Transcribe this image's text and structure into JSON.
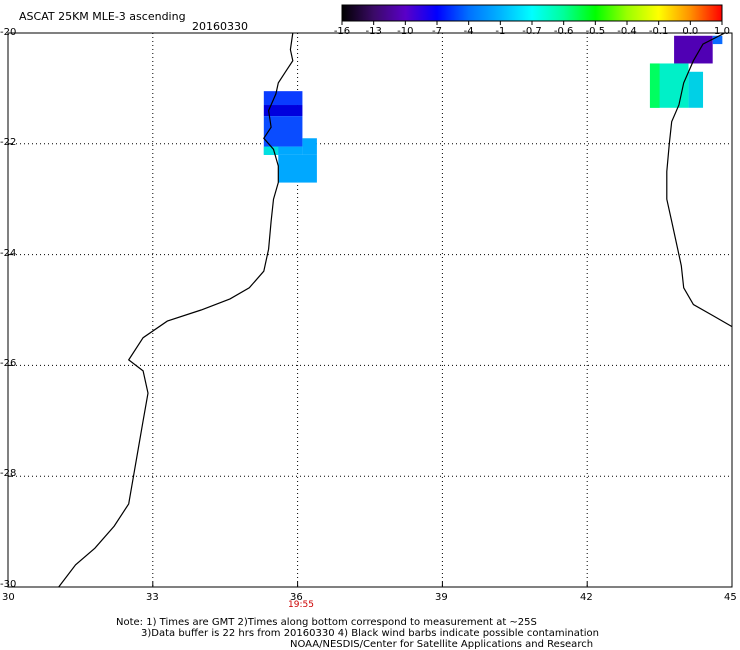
{
  "title": "ASCAT 25KM MLE-3 ascending",
  "date": "20160330",
  "colorbar": {
    "labels": [
      "-16",
      "-13",
      "-10",
      "-7",
      "-4",
      "-1",
      "-0.7",
      "-0.6",
      "-0.5",
      "-0.4",
      "-0.1",
      "0.0",
      "1.0"
    ],
    "colors": [
      "#000000",
      "#3a0a66",
      "#5a00c8",
      "#0000ff",
      "#0070ff",
      "#00b4ff",
      "#00ffff",
      "#00ff9a",
      "#00ff00",
      "#9aff00",
      "#ffff00",
      "#ff9000",
      "#ff0000"
    ]
  },
  "axes": {
    "x_ticks": [
      "30",
      "33",
      "36",
      "39",
      "42",
      "45"
    ],
    "y_ticks": [
      "-20",
      "-22",
      "-24",
      "-26",
      "-28",
      "-30"
    ],
    "time_label": "19:55",
    "time_color": "#cc0000"
  },
  "cells": [
    {
      "lon0": 35.3,
      "lon1": 36.1,
      "lat0": -21.05,
      "lat1": -21.3,
      "color": "#0a3cff"
    },
    {
      "lon0": 35.3,
      "lon1": 36.1,
      "lat0": -21.3,
      "lat1": -21.5,
      "color": "#0000dd"
    },
    {
      "lon0": 35.3,
      "lon1": 36.1,
      "lat0": -21.5,
      "lat1": -22.05,
      "color": "#0a4cff"
    },
    {
      "lon0": 35.3,
      "lon1": 36.1,
      "lat0": -22.05,
      "lat1": -22.2,
      "color": "#00a8ff"
    },
    {
      "lon0": 35.6,
      "lon1": 36.4,
      "lat0": -22.2,
      "lat1": -22.7,
      "color": "#00a8ff"
    },
    {
      "lon0": 36.1,
      "lon1": 36.4,
      "lat0": -21.9,
      "lat1": -22.2,
      "color": "#00a8ff"
    },
    {
      "lon0": 35.3,
      "lon1": 35.6,
      "lat0": -22.05,
      "lat1": -22.2,
      "color": "#00e0e0"
    },
    {
      "lon0": 43.8,
      "lon1": 44.6,
      "lat0": -20.05,
      "lat1": -20.55,
      "color": "#5000b4"
    },
    {
      "lon0": 44.6,
      "lon1": 44.8,
      "lat0": -20.05,
      "lat1": -20.2,
      "color": "#0a6cff"
    },
    {
      "lon0": 43.3,
      "lon1": 44.1,
      "lat0": -20.55,
      "lat1": -21.35,
      "color": "#00f0c8"
    },
    {
      "lon0": 43.3,
      "lon1": 43.5,
      "lat0": -20.55,
      "lat1": -21.35,
      "color": "#00ff60"
    },
    {
      "lon0": 44.1,
      "lon1": 44.4,
      "lat0": -20.7,
      "lat1": -21.35,
      "color": "#00d0e6"
    }
  ],
  "coastlines": [
    [
      [
        35.9,
        -20.0
      ],
      [
        35.85,
        -20.3
      ],
      [
        35.9,
        -20.5
      ],
      [
        35.75,
        -20.7
      ],
      [
        35.6,
        -20.9
      ],
      [
        35.55,
        -21.1
      ],
      [
        35.4,
        -21.4
      ],
      [
        35.45,
        -21.7
      ],
      [
        35.3,
        -21.9
      ],
      [
        35.5,
        -22.1
      ],
      [
        35.6,
        -22.4
      ],
      [
        35.6,
        -22.7
      ],
      [
        35.5,
        -23.0
      ],
      [
        35.45,
        -23.4
      ],
      [
        35.4,
        -23.9
      ],
      [
        35.3,
        -24.3
      ],
      [
        35.0,
        -24.6
      ],
      [
        34.6,
        -24.8
      ],
      [
        34.0,
        -25.0
      ],
      [
        33.3,
        -25.2
      ],
      [
        32.8,
        -25.5
      ],
      [
        32.5,
        -25.9
      ],
      [
        32.8,
        -26.1
      ],
      [
        32.9,
        -26.5
      ],
      [
        32.8,
        -27.0
      ],
      [
        32.7,
        -27.5
      ],
      [
        32.6,
        -28.0
      ],
      [
        32.5,
        -28.5
      ],
      [
        32.2,
        -28.9
      ],
      [
        31.8,
        -29.3
      ],
      [
        31.4,
        -29.6
      ],
      [
        31.05,
        -30.0
      ]
    ],
    [
      [
        44.85,
        -20.0
      ],
      [
        44.4,
        -20.2
      ],
      [
        44.2,
        -20.5
      ],
      [
        44.0,
        -20.9
      ],
      [
        43.9,
        -21.3
      ],
      [
        43.75,
        -21.6
      ],
      [
        43.7,
        -22.0
      ],
      [
        43.65,
        -22.5
      ],
      [
        43.65,
        -23.0
      ],
      [
        43.75,
        -23.4
      ],
      [
        43.85,
        -23.8
      ],
      [
        43.95,
        -24.2
      ],
      [
        44.0,
        -24.6
      ],
      [
        44.2,
        -24.9
      ],
      [
        44.6,
        -25.1
      ],
      [
        45.0,
        -25.3
      ]
    ]
  ],
  "notes": {
    "line1": "Note: 1) Times are GMT 2)Times along bottom correspond to measurement at ~25S",
    "line2": "3)Data buffer is 22 hrs from 20160330 4) Black wind barbs indicate possible contamination",
    "line3": "NOAA/NESDIS/Center for Satellite Applications and Research"
  }
}
